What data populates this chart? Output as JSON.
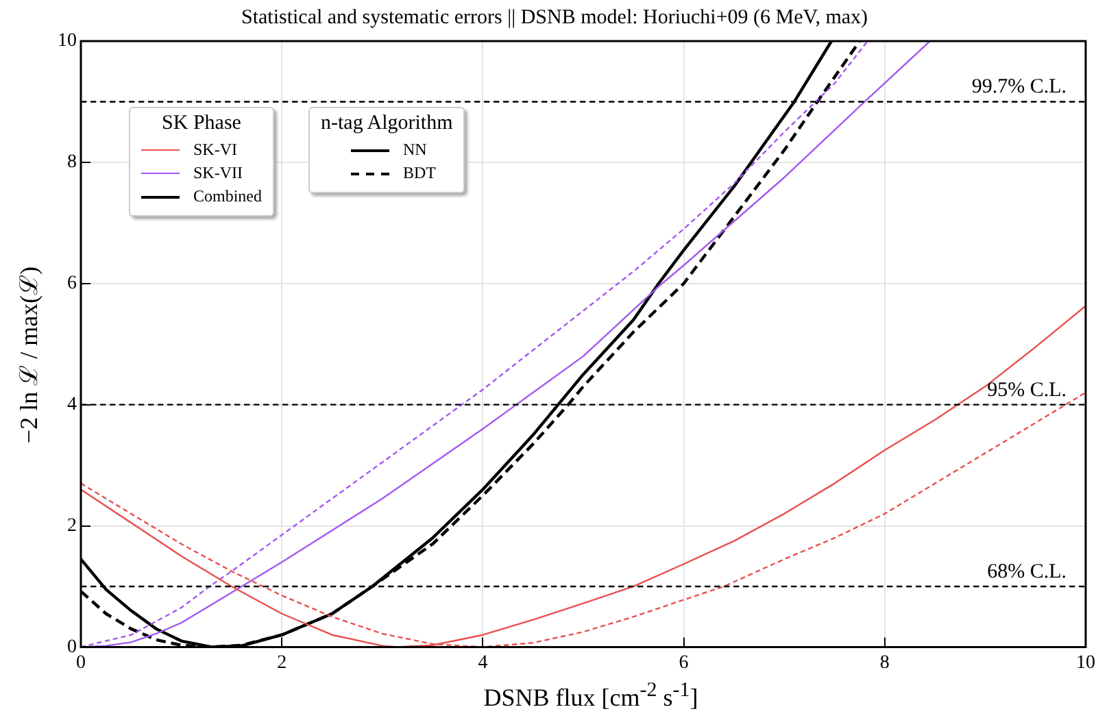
{
  "chart_data": {
    "type": "line",
    "title": "Statistical and systematic errors || DSNB model: Horiuchi+09 (6 MeV, max)",
    "xlabel": "DSNB flux [cm$^{-2}$ s$^{-1}$]",
    "ylabel": "−2 ln ℒ / max(ℒ)",
    "legend_title": "SK Phase",
    "legend": "top left",
    "annotations": [
      "n-tag Algorithm",
      "NN",
      "BDT"
    ],
    "xlim": [
      0,
      10
    ],
    "ylim": [
      0,
      10
    ],
    "xticks": [
      0,
      2,
      4,
      6,
      8,
      10
    ],
    "yticks": [
      0,
      2,
      4,
      6,
      8,
      10
    ],
    "grid": true,
    "marker": "none",
    "series": [
      {
        "name": "SK-VI",
        "color": "#e8504f",
        "line_style": "solid",
        "x": [
          0,
          0.5,
          1,
          1.5,
          2,
          2.5,
          3,
          3.15,
          3.5,
          4,
          4.5,
          5,
          5.5,
          6,
          6.5,
          7,
          7.5,
          8,
          8.5,
          9,
          9.5,
          10
        ],
        "values": [
          2.6,
          2.05,
          1.5,
          1.0,
          0.55,
          0.2,
          0.02,
          0,
          0.03,
          0.2,
          0.45,
          0.72,
          1.0,
          1.37,
          1.75,
          2.2,
          2.7,
          3.25,
          3.75,
          4.3,
          4.95,
          5.63
        ]
      },
      {
        "color": "#e8504f",
        "line_style": "dashed",
        "x": [
          0,
          0.5,
          1,
          1.5,
          2,
          2.5,
          3,
          3.5,
          4,
          4.5,
          5,
          5.5,
          6,
          6.4,
          7,
          7.5,
          8,
          8.5,
          9,
          9.5,
          10
        ],
        "values": [
          2.7,
          2.2,
          1.7,
          1.25,
          0.85,
          0.5,
          0.22,
          0.05,
          0,
          0.07,
          0.25,
          0.5,
          0.78,
          1.0,
          1.45,
          1.8,
          2.2,
          2.7,
          3.2,
          3.7,
          4.2
        ]
      },
      {
        "name": "SK-VII",
        "color": "#a259f0",
        "line_style": "solid",
        "x": [
          0,
          0.25,
          0.5,
          0.75,
          1,
          1.25,
          1.6,
          2,
          3,
          4,
          5,
          5.75,
          6,
          7,
          7.8,
          8.45
        ],
        "values": [
          0,
          0.02,
          0.08,
          0.22,
          0.4,
          0.65,
          1.0,
          1.4,
          2.45,
          3.6,
          4.8,
          5.95,
          6.3,
          7.75,
          9,
          10
        ]
      },
      {
        "color": "#a259f0",
        "line_style": "dashed",
        "x": [
          0,
          0.5,
          1,
          1.28,
          1.5,
          2,
          2.5,
          3,
          3.5,
          4,
          4.5,
          5,
          5.5,
          6,
          6.5,
          7,
          7.5,
          7.83
        ],
        "values": [
          0,
          0.2,
          0.65,
          1.0,
          1.25,
          1.85,
          2.45,
          3.05,
          3.65,
          4.25,
          4.9,
          5.55,
          6.2,
          6.9,
          7.65,
          8.5,
          9.3,
          10
        ]
      },
      {
        "name": "Combined",
        "color": "#000000",
        "line_style": "solid",
        "x": [
          0,
          0.25,
          0.5,
          0.75,
          1,
          1.3,
          1.6,
          2,
          2.5,
          2.9,
          3.5,
          4,
          4.5,
          4.75,
          5,
          5.5,
          5.75,
          6,
          6.5,
          6.8,
          7.1,
          7.47
        ],
        "values": [
          1.45,
          0.95,
          0.6,
          0.3,
          0.1,
          0,
          0.02,
          0.2,
          0.55,
          1.0,
          1.8,
          2.6,
          3.5,
          4.0,
          4.5,
          5.4,
          6.0,
          6.55,
          7.6,
          8.3,
          9,
          10
        ]
      },
      {
        "color": "#000000",
        "line_style": "dashed",
        "x": [
          0,
          0.25,
          0.5,
          0.75,
          1,
          1.3,
          1.6,
          2,
          2.5,
          2.9,
          3.5,
          4,
          4.5,
          4.85,
          5,
          5.5,
          6,
          6.5,
          7,
          7.33,
          7.75
        ],
        "values": [
          0.92,
          0.55,
          0.3,
          0.12,
          0.03,
          0,
          0.03,
          0.2,
          0.55,
          1.0,
          1.7,
          2.5,
          3.35,
          4.0,
          4.3,
          5.2,
          6.0,
          7.1,
          8.2,
          9,
          10
        ]
      }
    ],
    "ref_lines": [
      {
        "axis": "y",
        "value": 9,
        "label": "99.7% C.L.",
        "color": "#000000",
        "line_style": "dashed"
      },
      {
        "axis": "y",
        "value": 4,
        "label": "95% C.L.",
        "color": "#000000",
        "line_style": "dashed"
      },
      {
        "axis": "y",
        "value": 1,
        "label": "68% C.L.",
        "color": "#000000",
        "line_style": "dashed"
      }
    ]
  }
}
